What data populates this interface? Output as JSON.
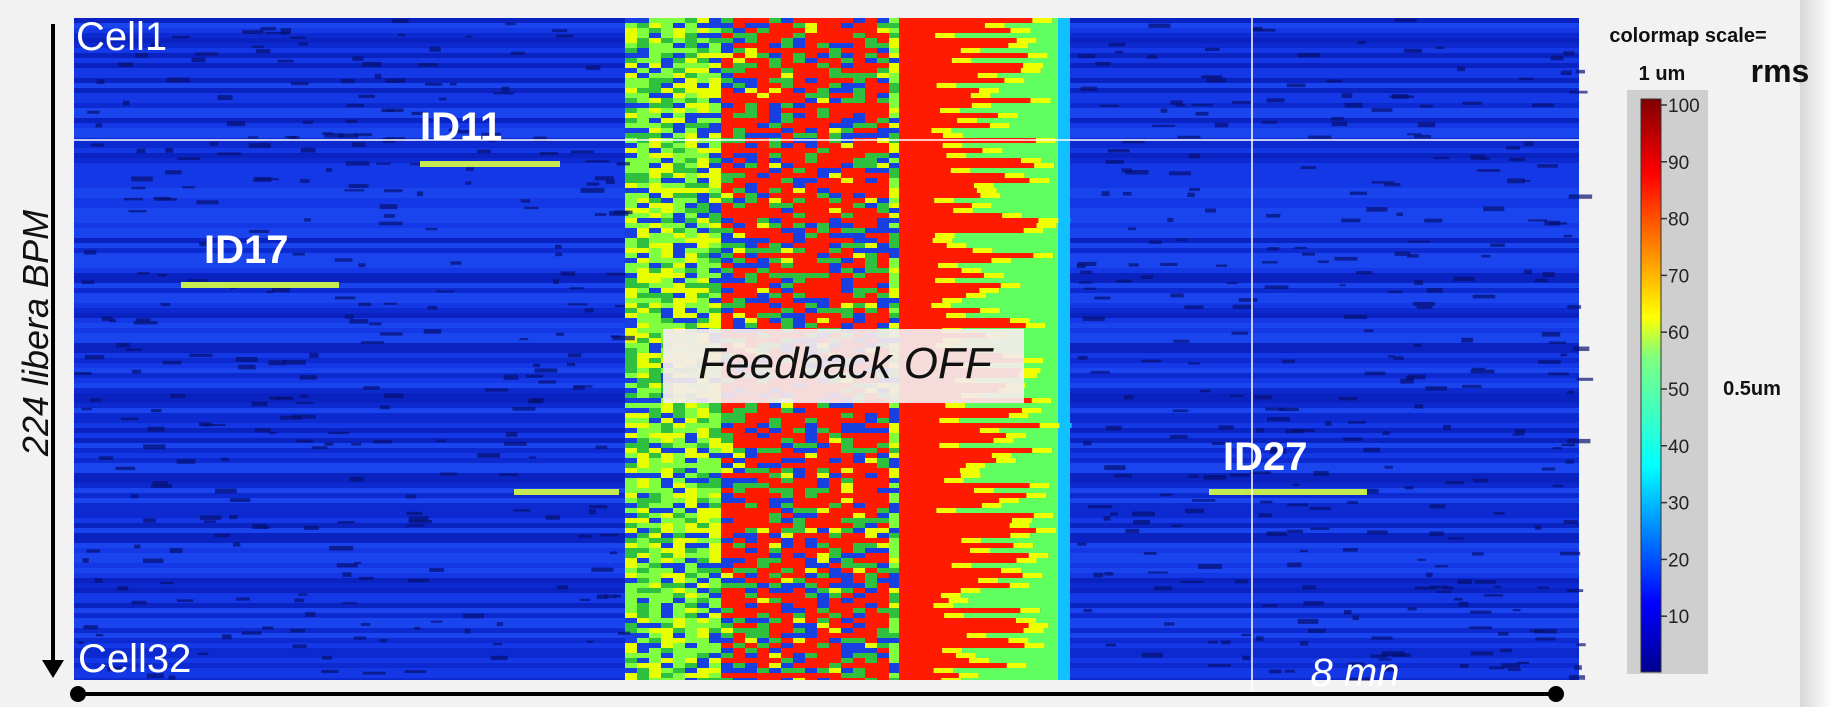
{
  "figure": {
    "y_axis_label": "224 libera BPM",
    "x_axis_label": "8 mn",
    "top_label": "Cell1",
    "bottom_label": "Cell32",
    "annotations": [
      "ID11",
      "ID17",
      "ID27"
    ],
    "overlay": "Feedback OFF"
  },
  "colorbar": {
    "title": "colormap scale=",
    "top_label": "1 um",
    "unit": "rms",
    "mid_label": "0.5um",
    "lim": [
      0,
      100
    ],
    "ticks": [
      10,
      20,
      30,
      40,
      50,
      60,
      70,
      80,
      90,
      100
    ]
  }
}
